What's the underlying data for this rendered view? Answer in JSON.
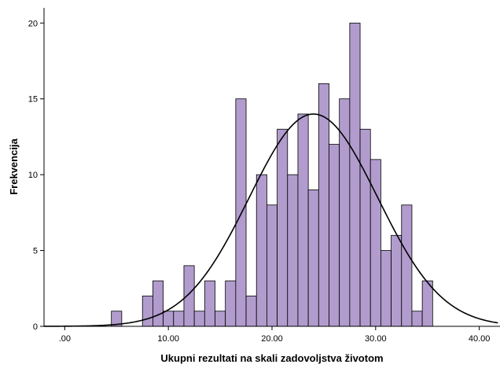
{
  "chart_data": {
    "type": "bar",
    "subtype": "histogram-with-normal-curve",
    "xlabel": "Ukupni rezultati na skali zadovoljstva životom",
    "ylabel": "Frekvencija",
    "xlim": [
      -2,
      42
    ],
    "ylim": [
      0,
      21
    ],
    "bin_width": 1,
    "x_ticks": [
      0,
      10,
      20,
      30,
      40
    ],
    "x_tick_labels": [
      ".00",
      "10.00",
      "20.00",
      "30.00",
      "40.00"
    ],
    "y_ticks": [
      0,
      5,
      10,
      15,
      20
    ],
    "y_tick_labels": [
      "0",
      "5",
      "10",
      "15",
      "20"
    ],
    "bins": [
      {
        "x": 5,
        "value": 1
      },
      {
        "x": 8,
        "value": 2
      },
      {
        "x": 9,
        "value": 3
      },
      {
        "x": 10,
        "value": 1
      },
      {
        "x": 11,
        "value": 1
      },
      {
        "x": 12,
        "value": 4
      },
      {
        "x": 13,
        "value": 1
      },
      {
        "x": 14,
        "value": 3
      },
      {
        "x": 15,
        "value": 1
      },
      {
        "x": 16,
        "value": 3
      },
      {
        "x": 17,
        "value": 15
      },
      {
        "x": 18,
        "value": 2
      },
      {
        "x": 19,
        "value": 10
      },
      {
        "x": 20,
        "value": 8
      },
      {
        "x": 21,
        "value": 13
      },
      {
        "x": 22,
        "value": 10
      },
      {
        "x": 23,
        "value": 14
      },
      {
        "x": 24,
        "value": 9
      },
      {
        "x": 25,
        "value": 16
      },
      {
        "x": 26,
        "value": 12
      },
      {
        "x": 27,
        "value": 15
      },
      {
        "x": 28,
        "value": 20
      },
      {
        "x": 29,
        "value": 13
      },
      {
        "x": 30,
        "value": 11
      },
      {
        "x": 31,
        "value": 5
      },
      {
        "x": 32,
        "value": 6
      },
      {
        "x": 33,
        "value": 8
      },
      {
        "x": 34,
        "value": 1
      },
      {
        "x": 35,
        "value": 3
      }
    ],
    "normal_curve": {
      "mean": 24,
      "sd": 6.2,
      "peak": 14
    },
    "bar_color": "#B19CCD",
    "bar_edge_color": "#000000",
    "curve_color": "#000000",
    "grid": false,
    "legend": "none"
  }
}
